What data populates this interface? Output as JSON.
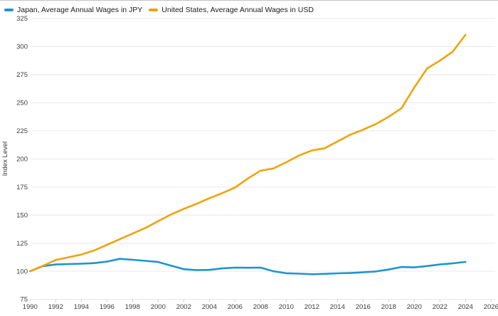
{
  "chart_data": {
    "type": "line",
    "title": "",
    "ylabel": "Index Level",
    "xlabel": "",
    "ylim": [
      75,
      325
    ],
    "grid": "horizontal",
    "legend_position": "top-left",
    "yticks": [
      325,
      300,
      275,
      250,
      225,
      200,
      175,
      150,
      125,
      100,
      75
    ],
    "xticks": [
      1990,
      1992,
      1994,
      1996,
      1998,
      2000,
      2002,
      2004,
      2006,
      2008,
      2010,
      2012,
      2014,
      2016,
      2018,
      2020,
      2022,
      2024,
      2026
    ],
    "x": [
      1990,
      1991,
      1992,
      1993,
      1994,
      1995,
      1996,
      1997,
      1998,
      1999,
      2000,
      2001,
      2002,
      2003,
      2004,
      2005,
      2006,
      2007,
      2008,
      2009,
      2010,
      2011,
      2012,
      2013,
      2014,
      2015,
      2016,
      2017,
      2018,
      2019,
      2020,
      2021,
      2022,
      2023,
      2024
    ],
    "series": [
      {
        "id": "japan",
        "name": "Japan, Average Annual Wages in JPY",
        "color": "#1E94D2",
        "values": [
          100,
          104.5,
          106,
          106.3,
          106.7,
          107.2,
          108.5,
          111,
          110.2,
          109.2,
          108.2,
          105,
          101.8,
          101,
          101.2,
          102.5,
          103.2,
          103.1,
          103.2,
          100,
          98.2,
          97.8,
          97.3,
          97.6,
          98.1,
          98.4,
          99,
          99.8,
          101.5,
          103.8,
          103.4,
          104.6,
          106,
          107,
          108.3
        ]
      },
      {
        "id": "united-states",
        "name": "United States, Average Annual Wages in USD",
        "color": "#F0A30A",
        "values": [
          100,
          104.8,
          110,
          112.4,
          114.8,
          118.5,
          123.5,
          128.5,
          133.5,
          138.5,
          144.5,
          150.5,
          155.5,
          160,
          165,
          169.5,
          174.5,
          182.5,
          189.5,
          191.5,
          197,
          203,
          207.5,
          209.5,
          215.5,
          221.5,
          226,
          231,
          237.5,
          245,
          263.5,
          280.5,
          287.5,
          295.5,
          310.5
        ]
      }
    ]
  }
}
